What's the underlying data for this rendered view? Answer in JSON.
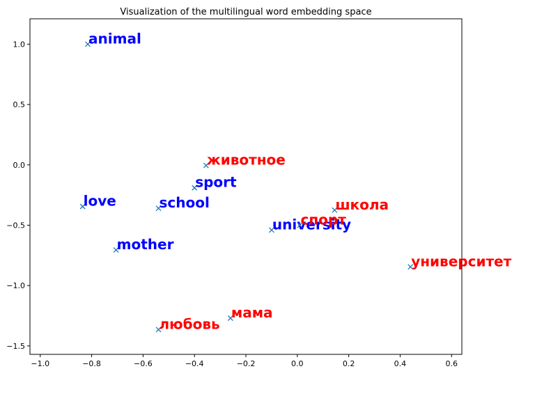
{
  "chart_data": {
    "type": "scatter",
    "title": "Visualization of the multilingual word embedding space",
    "xlabel": "",
    "ylabel": "",
    "xlim": [
      -1.04,
      0.64
    ],
    "ylim": [
      -1.57,
      1.21
    ],
    "xticks": [
      -1.0,
      -0.8,
      -0.6,
      -0.4,
      -0.2,
      0.0,
      0.2,
      0.4,
      0.6
    ],
    "xtick_labels": [
      "−1.0",
      "−0.8",
      "−0.6",
      "−0.4",
      "−0.2",
      "0.0",
      "0.2",
      "0.4",
      "0.6"
    ],
    "yticks": [
      1.0,
      0.5,
      0.0,
      -0.5,
      -1.0,
      -1.5
    ],
    "ytick_labels": [
      "1.0",
      "0.5",
      "0.0",
      "−0.5",
      "−1.0",
      "−1.5"
    ],
    "grid": false,
    "marker": "x",
    "marker_color": "#1f77b4",
    "series": [
      {
        "color": "#0000ff",
        "points": [
          {
            "label": "animal",
            "x": -0.815,
            "y": 1.0
          },
          {
            "label": "sport",
            "x": -0.4,
            "y": -0.19
          },
          {
            "label": "love",
            "x": -0.835,
            "y": -0.345
          },
          {
            "label": "school",
            "x": -0.54,
            "y": -0.36
          },
          {
            "label": "university",
            "x": -0.1,
            "y": -0.54
          },
          {
            "label": "mother",
            "x": -0.705,
            "y": -0.705
          }
        ]
      },
      {
        "color": "#ff0000",
        "points": [
          {
            "label": "животное",
            "x": -0.355,
            "y": -0.005
          },
          {
            "label": "школа",
            "x": 0.145,
            "y": -0.375
          },
          {
            "label": "спорт",
            "x": 0.01,
            "y": -0.5
          },
          {
            "label": "университет",
            "x": 0.44,
            "y": -0.845
          },
          {
            "label": "мама",
            "x": -0.26,
            "y": -1.27
          },
          {
            "label": "любовь",
            "x": -0.54,
            "y": -1.365
          }
        ]
      }
    ]
  }
}
